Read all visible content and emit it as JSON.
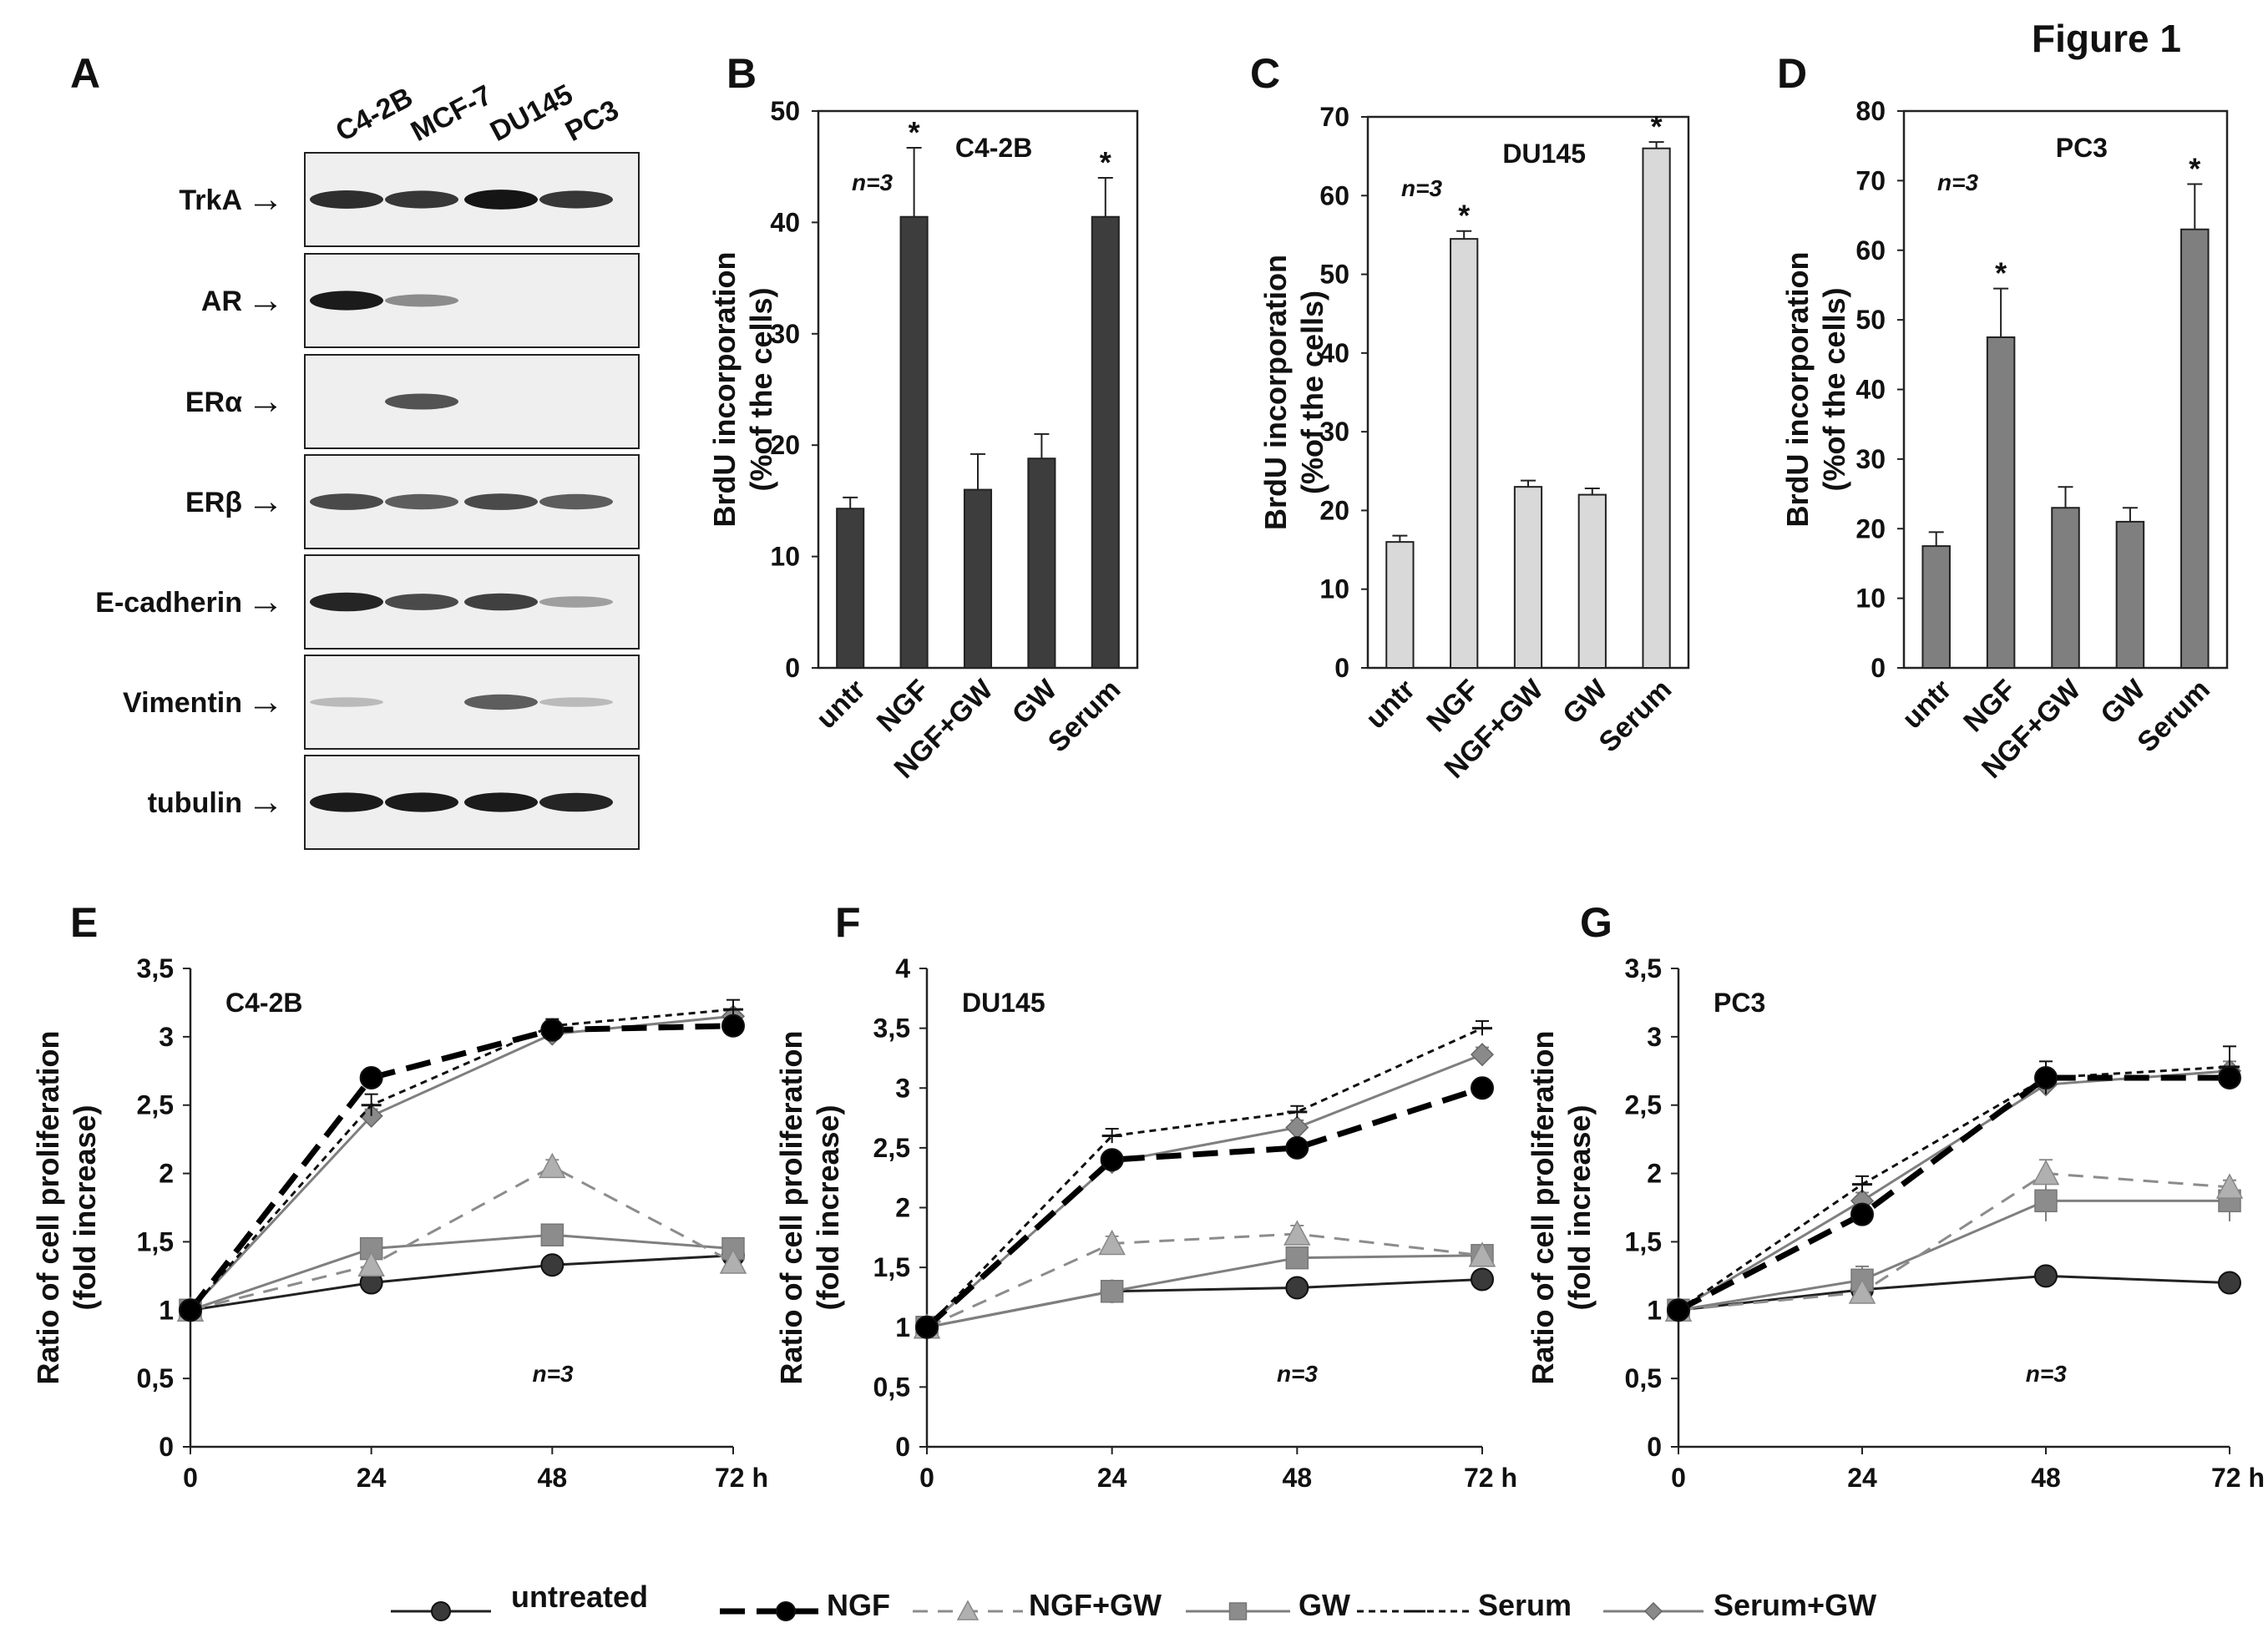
{
  "figure_title": "Figure 1",
  "blot": {
    "panel_label": "A",
    "lanes": [
      "C4-2B",
      "MCF-7",
      "DU145",
      "PC3"
    ],
    "rows": [
      {
        "label": "TrkA",
        "bands": [
          0.85,
          0.8,
          0.98,
          0.8
        ]
      },
      {
        "label": "AR",
        "bands": [
          0.95,
          0.35,
          0.0,
          0.0
        ]
      },
      {
        "label": "ERα",
        "bands": [
          0.0,
          0.65,
          0.0,
          0.0
        ]
      },
      {
        "label": "ERβ",
        "bands": [
          0.7,
          0.6,
          0.7,
          0.6
        ]
      },
      {
        "label": "E-cadherin",
        "bands": [
          0.9,
          0.7,
          0.75,
          0.25
        ]
      },
      {
        "label": "Vimentin",
        "bands": [
          0.1,
          0.0,
          0.6,
          0.1
        ]
      },
      {
        "label": "tubulin",
        "bands": [
          0.95,
          0.95,
          0.95,
          0.9
        ]
      }
    ],
    "arrow": "→"
  },
  "chart_data": [
    {
      "panel": "B",
      "type": "bar",
      "title": "C4-2B",
      "ylabel": "BrdU incorporation (%of the cells)",
      "ylabel_lines": [
        "BrdU incorporation",
        "(%of the cells)"
      ],
      "categories": [
        "untr",
        "NGF",
        "NGF+GW",
        "GW",
        "Serum"
      ],
      "values": [
        14.3,
        40.5,
        16.0,
        18.8,
        40.5
      ],
      "errors": [
        1.0,
        6.2,
        3.2,
        2.2,
        3.5
      ],
      "significant": [
        false,
        true,
        false,
        false,
        true
      ],
      "star": "*",
      "ylim": [
        0,
        50
      ],
      "yticks": [
        0,
        10,
        20,
        30,
        40,
        50
      ],
      "n_label": "n=3",
      "bar_color": "#3d3d3d"
    },
    {
      "panel": "C",
      "type": "bar",
      "title": "DU145",
      "ylabel": "BrdU incorporation (%of the cells)",
      "ylabel_lines": [
        "BrdU incorporation",
        "(%of the cells)"
      ],
      "categories": [
        "untr",
        "NGF",
        "NGF+GW",
        "GW",
        "Serum"
      ],
      "values": [
        16.0,
        54.5,
        23.0,
        22.0,
        66.0
      ],
      "errors": [
        0.8,
        1.0,
        0.8,
        0.8,
        0.8
      ],
      "significant": [
        false,
        true,
        false,
        false,
        true
      ],
      "star": "*",
      "ylim": [
        0,
        70
      ],
      "yticks": [
        0,
        10,
        20,
        30,
        40,
        50,
        60,
        70
      ],
      "n_label": "n=3",
      "bar_color": "#d9d9d9"
    },
    {
      "panel": "D",
      "type": "bar",
      "title": "PC3",
      "ylabel": "BrdU incorporation (%of the cells)",
      "ylabel_lines": [
        "BrdU incorporation",
        "(%of the cells)"
      ],
      "categories": [
        "untr",
        "NGF",
        "NGF+GW",
        "GW",
        "Serum"
      ],
      "values": [
        17.5,
        47.5,
        23.0,
        21.0,
        63.0
      ],
      "errors": [
        2.0,
        7.0,
        3.0,
        2.0,
        6.5
      ],
      "significant": [
        false,
        true,
        false,
        false,
        true
      ],
      "star": "*",
      "ylim": [
        0,
        80
      ],
      "yticks": [
        0,
        10,
        20,
        30,
        40,
        50,
        60,
        70,
        80
      ],
      "n_label": "n=3",
      "bar_color": "#7f7f7f"
    },
    {
      "panel": "E",
      "type": "line",
      "title": "C4-2B",
      "ylabel": "Ratio of cell proliferation (fold increase)",
      "ylabel_lines": [
        "Ratio of cell proliferation",
        "(fold increase)"
      ],
      "x": [
        0,
        24,
        48,
        72
      ],
      "xticks": [
        "0",
        "24",
        "48",
        "72 h"
      ],
      "ylim": [
        0,
        3.5
      ],
      "yticks": [
        "0",
        "0,5",
        "1",
        "1,5",
        "2",
        "2,5",
        "3",
        "3,5"
      ],
      "n_label": "n=3",
      "series": [
        {
          "name": "untreated",
          "values": [
            1,
            1.2,
            1.33,
            1.4
          ],
          "errors": [
            0,
            0.03,
            0.03,
            0.03
          ]
        },
        {
          "name": "NGF",
          "values": [
            1,
            2.7,
            3.05,
            3.08
          ],
          "errors": [
            0,
            0.03,
            0.05,
            0.05
          ]
        },
        {
          "name": "NGF+GW",
          "values": [
            1,
            1.33,
            2.05,
            1.35
          ],
          "errors": [
            0,
            0.05,
            0.05,
            0.05
          ]
        },
        {
          "name": "GW",
          "values": [
            1,
            1.45,
            1.55,
            1.45
          ],
          "errors": [
            0,
            0.03,
            0.03,
            0.03
          ]
        },
        {
          "name": "Serum",
          "values": [
            1,
            2.5,
            3.08,
            3.2
          ],
          "errors": [
            0,
            0.08,
            0.05,
            0.07
          ]
        },
        {
          "name": "Serum+GW",
          "values": [
            1,
            2.42,
            3.02,
            3.15
          ],
          "errors": [
            0,
            0.05,
            0.05,
            0.05
          ]
        }
      ]
    },
    {
      "panel": "F",
      "type": "line",
      "title": "DU145",
      "ylabel": "Ratio of cell proliferation (fold increase)",
      "ylabel_lines": [
        "Ratio of cell proliferation",
        "(fold increase)"
      ],
      "x": [
        0,
        24,
        48,
        72
      ],
      "xticks": [
        "0",
        "24",
        "48",
        "72 h"
      ],
      "ylim": [
        0,
        4
      ],
      "yticks": [
        "0",
        "0,5",
        "1",
        "1,5",
        "2",
        "2,5",
        "3",
        "3,5",
        "4"
      ],
      "n_label": "n=3",
      "series": [
        {
          "name": "untreated",
          "values": [
            1,
            1.3,
            1.33,
            1.4
          ],
          "errors": [
            0,
            0.03,
            0.03,
            0.03
          ]
        },
        {
          "name": "NGF",
          "values": [
            1,
            2.4,
            2.5,
            3.0
          ],
          "errors": [
            0,
            0.05,
            0.04,
            0.04
          ]
        },
        {
          "name": "NGF+GW",
          "values": [
            1,
            1.7,
            1.78,
            1.6
          ],
          "errors": [
            0,
            0.06,
            0.07,
            0.04
          ]
        },
        {
          "name": "GW",
          "values": [
            1,
            1.3,
            1.58,
            1.6
          ],
          "errors": [
            0,
            0.04,
            0.04,
            0.04
          ]
        },
        {
          "name": "Serum",
          "values": [
            1,
            2.6,
            2.8,
            3.5
          ],
          "errors": [
            0,
            0.06,
            0.05,
            0.06
          ]
        },
        {
          "name": "Serum+GW",
          "values": [
            1,
            2.38,
            2.67,
            3.28
          ],
          "errors": [
            0,
            0.06,
            0.06,
            0.06
          ]
        }
      ]
    },
    {
      "panel": "G",
      "type": "line",
      "title": "PC3",
      "ylabel": "Ratio of cell proliferation (fold increase)",
      "ylabel_lines": [
        "Ratio of cell proliferation",
        "(fold increase)"
      ],
      "x": [
        0,
        24,
        48,
        72
      ],
      "xticks": [
        "0",
        "24",
        "48",
        "72 h"
      ],
      "ylim": [
        0,
        3.5
      ],
      "yticks": [
        "0",
        "0,5",
        "1",
        "1,5",
        "2",
        "2,5",
        "3",
        "3,5"
      ],
      "n_label": "n=3",
      "series": [
        {
          "name": "untreated",
          "values": [
            1,
            1.15,
            1.25,
            1.2
          ],
          "errors": [
            0,
            0.03,
            0.03,
            0.03
          ]
        },
        {
          "name": "NGF",
          "values": [
            1,
            1.7,
            2.7,
            2.7
          ],
          "errors": [
            0,
            0.04,
            0.04,
            0.04
          ]
        },
        {
          "name": "NGF+GW",
          "values": [
            1,
            1.13,
            2.0,
            1.9
          ],
          "errors": [
            0,
            0.06,
            0.1,
            0.05
          ]
        },
        {
          "name": "GW",
          "values": [
            1,
            1.22,
            1.8,
            1.8
          ],
          "errors": [
            0,
            0.1,
            0.15,
            0.15
          ]
        },
        {
          "name": "Serum",
          "values": [
            1,
            1.92,
            2.7,
            2.78
          ],
          "errors": [
            0,
            0.06,
            0.12,
            0.15
          ]
        },
        {
          "name": "Serum+GW",
          "values": [
            1,
            1.8,
            2.65,
            2.75
          ],
          "errors": [
            0,
            0.06,
            0.08,
            0.07
          ]
        }
      ]
    }
  ],
  "legend": {
    "items": [
      {
        "name": "untreated",
        "color": "#222222",
        "marker": "circle",
        "dash": "solid",
        "width": 3,
        "marker_fill": "#3a3a3a"
      },
      {
        "name": "NGF",
        "color": "#000000",
        "marker": "circle",
        "dash": "longdash",
        "width": 7,
        "marker_fill": "#000000"
      },
      {
        "name": "NGF+GW",
        "color": "#8c8c8c",
        "marker": "triangle",
        "dash": "dash",
        "width": 3,
        "marker_fill": "#b0b0b0"
      },
      {
        "name": "GW",
        "color": "#7f7f7f",
        "marker": "square",
        "dash": "solid",
        "width": 3,
        "marker_fill": "#8c8c8c"
      },
      {
        "name": "Serum",
        "color": "#111111",
        "marker": "dash",
        "dash": "dot",
        "width": 3,
        "marker_fill": "#111111"
      },
      {
        "name": "Serum+GW",
        "color": "#7f7f7f",
        "marker": "diamond",
        "dash": "solid",
        "width": 3,
        "marker_fill": "#8a8a8a"
      }
    ]
  }
}
